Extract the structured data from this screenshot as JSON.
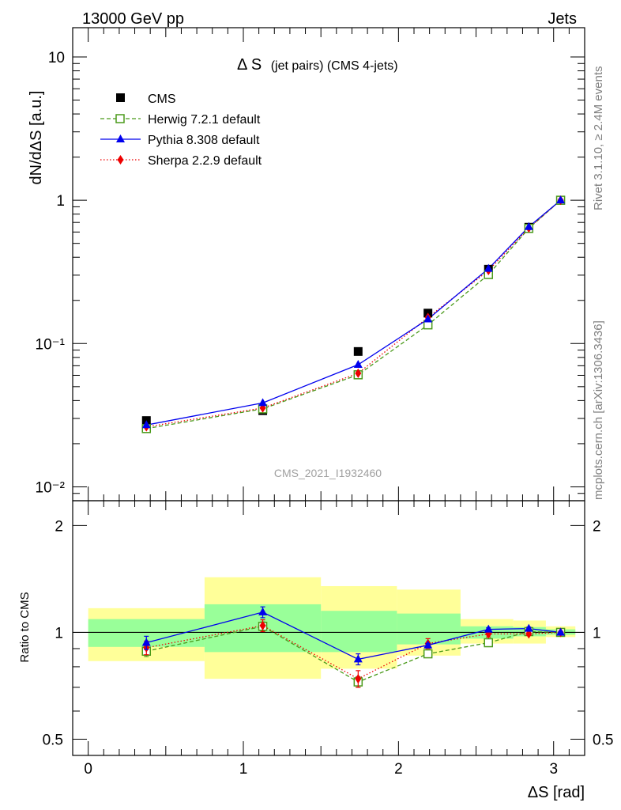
{
  "header": {
    "energy_label": "13000 GeV pp",
    "process_label": "Jets"
  },
  "side_labels": {
    "rivet": "Rivet 3.1.10, ≥ 2.4M events",
    "mcplots": "mcplots.cern.ch [arXiv:1306.3436]"
  },
  "chart_data": {
    "type": "line",
    "title": "Δ S",
    "subtitle": "(jet pairs) (CMS 4-jets)",
    "analysis_id": "CMS_2021_I1932460",
    "xlabel": "ΔS [rad]",
    "ylabel": "dN/dΔS [a.u.]",
    "ratio_ylabel": "Ratio to CMS",
    "xlim": [
      -0.1,
      3.2
    ],
    "ylim": [
      0.008,
      16
    ],
    "yscale": "log",
    "ratio_ylim": [
      0.45,
      2.35
    ],
    "ratio_yscale": "log",
    "x_ticks": [
      0,
      1,
      2,
      3
    ],
    "y_tick_labels": {
      "main": [
        {
          "value": 10,
          "label": "10"
        },
        {
          "value": 1,
          "label": "1"
        },
        {
          "value": 0.1,
          "label": "10⁻¹"
        },
        {
          "value": 0.01,
          "label": "10⁻²"
        }
      ],
      "ratio": [
        {
          "value": 2,
          "label": "2"
        },
        {
          "value": 1,
          "label": "1"
        },
        {
          "value": 0.5,
          "label": "0.5"
        }
      ]
    },
    "x": [
      0.375,
      1.125,
      1.74,
      2.19,
      2.58,
      2.84,
      3.045
    ],
    "bin_edges": [
      0.0,
      0.75,
      1.5,
      1.99,
      2.4,
      2.74,
      2.95,
      3.14
    ],
    "series": [
      {
        "name": "CMS",
        "role": "data",
        "marker": "square-filled",
        "color": "#000000",
        "values": [
          0.029,
          0.034,
          0.088,
          0.163,
          0.33,
          0.648,
          1.0
        ]
      },
      {
        "name": "Herwig 7.2.1 default",
        "marker": "square-open",
        "linestyle": "dashed",
        "color": "#4a9a1a",
        "values": [
          0.0255,
          0.035,
          0.0605,
          0.135,
          0.303,
          0.636,
          1.0
        ]
      },
      {
        "name": "Pythia 8.308 default",
        "marker": "triangle-filled",
        "linestyle": "solid",
        "color": "#0000ee",
        "values": [
          0.027,
          0.0385,
          0.0712,
          0.148,
          0.333,
          0.652,
          1.0
        ]
      },
      {
        "name": "Sherpa 2.2.9 default",
        "marker": "diamond-filled",
        "linestyle": "dotted",
        "color": "#ee0000",
        "values": [
          0.0262,
          0.0355,
          0.062,
          0.152,
          0.323,
          0.64,
          1.0
        ]
      }
    ],
    "ratio_series": [
      {
        "name": "Herwig 7.2.1 default",
        "values": [
          0.885,
          1.04,
          0.725,
          0.87,
          0.935,
          1.005,
          1.0
        ],
        "errors": [
          0.03,
          0.03,
          0.025,
          0.01,
          0.01,
          0.005,
          0.005
        ]
      },
      {
        "name": "Pythia 8.308 default",
        "values": [
          0.935,
          1.14,
          0.84,
          0.92,
          1.02,
          1.025,
          1.0
        ],
        "errors": [
          0.04,
          0.04,
          0.03,
          0.01,
          0.01,
          0.01,
          0.005
        ]
      },
      {
        "name": "Sherpa 2.2.9 default",
        "values": [
          0.905,
          1.045,
          0.74,
          0.93,
          0.99,
          0.99,
          1.0
        ],
        "errors": [
          0.04,
          0.04,
          0.04,
          0.03,
          0.02,
          0.01,
          0.005
        ]
      }
    ],
    "uncertainty_bands": {
      "stat": {
        "color": "#99ff99",
        "low": [
          0.91,
          0.88,
          0.88,
          0.925,
          0.96,
          0.975,
          0.985
        ],
        "high": [
          1.09,
          1.2,
          1.15,
          1.13,
          1.04,
          1.035,
          1.02
        ]
      },
      "total": {
        "color": "#ffff99",
        "low": [
          0.83,
          0.74,
          0.79,
          0.86,
          0.93,
          0.93,
          0.97
        ],
        "high": [
          1.17,
          1.43,
          1.35,
          1.32,
          1.09,
          1.08,
          1.04
        ]
      }
    },
    "legend_position": "top-left"
  }
}
